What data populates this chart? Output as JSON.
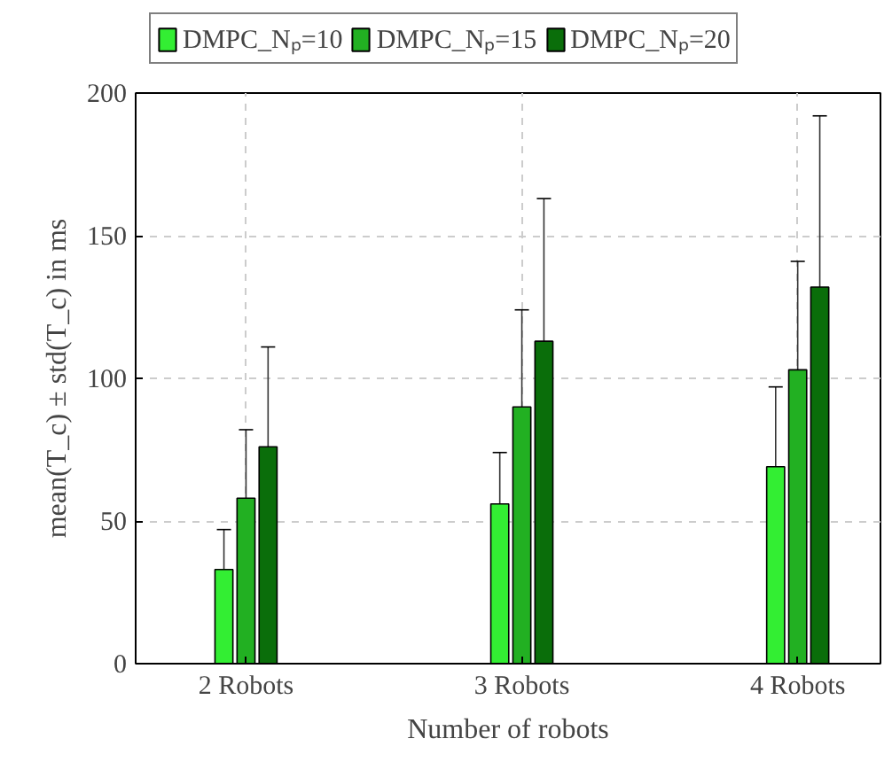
{
  "chart_data": {
    "type": "bar",
    "xlabel": "Number of robots",
    "ylabel": "mean(T_c) ± std(T_c) in ms",
    "categories": [
      "2 Robots",
      "3 Robots",
      "4 Robots"
    ],
    "series": [
      {
        "name": "DMPC_Nₚ=10",
        "color": "#33ee33",
        "values": [
          33,
          56,
          69
        ],
        "errors": [
          14,
          18,
          28
        ]
      },
      {
        "name": "DMPC_Nₚ=15",
        "color": "#22b022",
        "values": [
          58,
          90,
          103
        ],
        "errors": [
          24,
          34,
          38
        ]
      },
      {
        "name": "DMPC_Nₚ=20",
        "color": "#0a6e0a",
        "values": [
          76,
          113,
          132
        ],
        "errors": [
          35,
          50,
          60
        ]
      }
    ],
    "ylim": [
      0,
      200
    ],
    "yticks": [
      0,
      50,
      100,
      150,
      200
    ],
    "grid": true,
    "legend": "top"
  }
}
